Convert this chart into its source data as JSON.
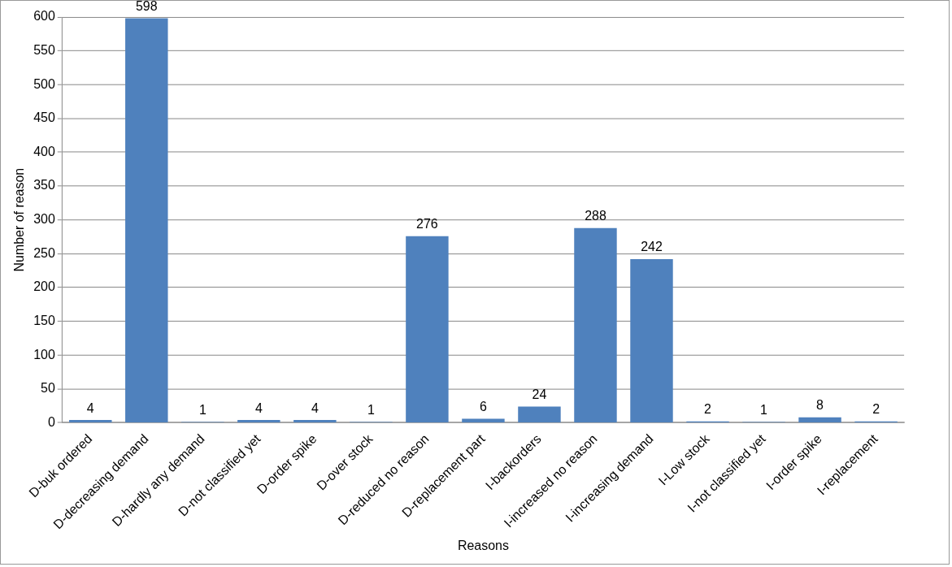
{
  "chart_data": {
    "type": "bar",
    "xlabel": "Reasons",
    "ylabel": "Number of reason",
    "categories": [
      "D-buk ordered",
      "D-decreasing demand",
      "D-hardly any demand",
      "D-not classified yet",
      "D-order spike",
      "D-over stock",
      "D-reduced no reason",
      "D-replacement part",
      "I-backorders",
      "I-increased no reason",
      "I-increasing demand",
      "I-Low stock",
      "I-not classified yet",
      "I-order spike",
      "I-replacement"
    ],
    "values": [
      4,
      598,
      1,
      4,
      4,
      1,
      276,
      6,
      24,
      288,
      242,
      2,
      1,
      8,
      2
    ],
    "color": "#4f81bd",
    "ylim": [
      0,
      600
    ],
    "yticks": [
      0,
      50,
      100,
      150,
      200,
      250,
      300,
      350,
      400,
      450,
      500,
      550,
      600
    ],
    "grid": "y",
    "legend": false,
    "data_labels": true
  }
}
